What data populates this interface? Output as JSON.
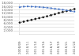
{
  "chart_data": {
    "type": "line",
    "categories": [
      "2008/09",
      null,
      "2010/11",
      null,
      "2012/13",
      null,
      "2014/15",
      null,
      "2016/17",
      null,
      "2018/19",
      null,
      "2020/21",
      null,
      "2022/23"
    ],
    "series": [
      {
        "color": "#4472c4",
        "marker": "square",
        "line_style": "dashed",
        "values": [
          15800,
          16100,
          16200,
          16100,
          16000,
          15900,
          15700,
          15500,
          15200,
          14900,
          14600,
          14300,
          13900,
          13500,
          13200
        ]
      },
      {
        "color": "#1a1a1a",
        "marker": "circle",
        "line_style": "dotted",
        "values": [
          6800,
          7300,
          7900,
          8400,
          8900,
          9400,
          9900,
          10500,
          11100,
          11700,
          12400,
          13000,
          13500,
          14000,
          14700
        ]
      }
    ],
    "ylim": [
      0,
      18000
    ],
    "yticks": [
      {
        "value": 2000,
        "label": "2,000"
      },
      {
        "value": 4000,
        "label": "4,000"
      },
      {
        "value": 6000,
        "label": "6,000"
      },
      {
        "value": 8000,
        "label": "8,000"
      },
      {
        "value": 10000,
        "label": "10,000"
      },
      {
        "value": 12000,
        "label": "12,000"
      },
      {
        "value": 14000,
        "label": "14,000"
      },
      {
        "value": 16000,
        "label": "16,000"
      },
      {
        "value": 18000,
        "label": "18,000"
      }
    ],
    "grid": "y"
  }
}
